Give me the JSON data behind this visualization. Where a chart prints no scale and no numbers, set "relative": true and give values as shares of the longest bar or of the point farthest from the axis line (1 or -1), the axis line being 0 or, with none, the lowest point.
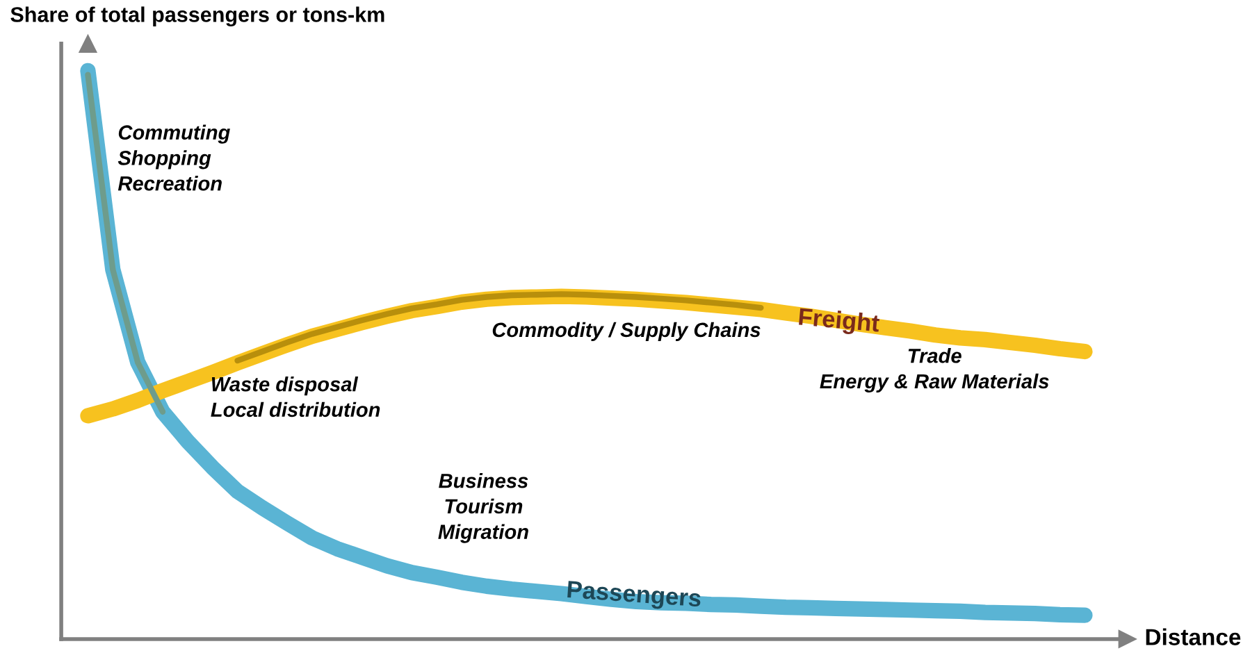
{
  "chart_data": {
    "type": "line",
    "relative": true,
    "xlabel": "Distance",
    "ylabel": "Share of total passengers or tons-km",
    "categories": [
      null,
      null,
      null,
      null,
      null,
      null,
      null,
      null,
      null,
      null,
      null,
      null,
      null,
      null,
      null,
      null,
      null,
      null,
      null,
      null,
      null,
      null,
      null,
      null,
      null,
      null,
      null,
      null,
      null,
      null,
      null,
      null,
      null,
      null,
      null,
      null,
      null,
      null,
      null,
      null,
      null
    ],
    "series": [
      {
        "name": "Passengers",
        "color": "#5ab4d4",
        "values": [
          1.0,
          0.65,
          0.487,
          0.4,
          0.348,
          0.302,
          0.26,
          0.231,
          0.204,
          0.178,
          0.159,
          0.144,
          0.129,
          0.117,
          0.109,
          0.1,
          0.093,
          0.088,
          0.084,
          0.08,
          0.075,
          0.07,
          0.066,
          0.064,
          0.063,
          0.061,
          0.06,
          0.058,
          0.056,
          0.055,
          0.054,
          0.053,
          0.052,
          0.051,
          0.05,
          0.049,
          0.047,
          0.046,
          0.045,
          0.043,
          0.042
        ]
      },
      {
        "name": "Freight",
        "color": "#f7c21f",
        "values": [
          0.393,
          0.405,
          0.42,
          0.437,
          0.453,
          0.469,
          0.486,
          0.502,
          0.518,
          0.533,
          0.545,
          0.557,
          0.568,
          0.578,
          0.585,
          0.593,
          0.598,
          0.601,
          0.602,
          0.603,
          0.602,
          0.6,
          0.598,
          0.595,
          0.592,
          0.588,
          0.584,
          0.58,
          0.574,
          0.568,
          0.561,
          0.554,
          0.548,
          0.542,
          0.535,
          0.53,
          0.527,
          0.522,
          0.517,
          0.511,
          0.506
        ]
      },
      {
        "color": "#6e9c8c",
        "values": [
          0.993,
          0.65,
          0.487,
          0.4,
          null,
          null,
          null,
          null,
          null,
          null,
          null,
          null,
          null,
          null,
          null,
          null,
          null,
          null,
          null,
          null,
          null,
          null,
          null,
          null,
          null,
          null,
          null,
          null,
          null,
          null,
          null,
          null,
          null,
          null,
          null,
          null,
          null,
          null,
          null,
          null,
          null
        ]
      },
      {
        "color": "#b88f0c",
        "values": [
          null,
          null,
          null,
          null,
          null,
          null,
          0.49,
          0.506,
          0.522,
          0.537,
          0.549,
          0.561,
          0.572,
          0.582,
          0.589,
          0.597,
          0.602,
          0.605,
          0.606,
          0.607,
          0.606,
          0.604,
          0.602,
          0.599,
          0.596,
          0.592,
          0.588,
          0.583,
          null,
          null,
          null,
          null,
          null,
          null,
          null,
          null,
          null,
          null,
          null,
          null,
          null
        ]
      }
    ],
    "annotations": [
      "Commuting\nShopping\nRecreation",
      "Waste disposal\nLocal distribution",
      "Commodity / Supply Chains",
      "Trade\nEnergy & Raw Materials",
      "Business\nTourism\nMigration"
    ]
  }
}
